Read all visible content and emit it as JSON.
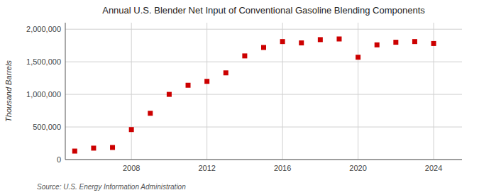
{
  "chart_data": {
    "type": "scatter",
    "title": "Annual U.S. Blender Net Input of Conventional Gasoline Blending Components",
    "y_label": "Thousand Barrels",
    "source": "Source: U.S. Energy Information Administration",
    "x": [
      2005,
      2006,
      2007,
      2008,
      2009,
      2010,
      2011,
      2012,
      2013,
      2014,
      2015,
      2016,
      2017,
      2018,
      2019,
      2020,
      2021,
      2022,
      2023,
      2024
    ],
    "values": [
      130000,
      175000,
      185000,
      460000,
      710000,
      1000000,
      1140000,
      1200000,
      1330000,
      1590000,
      1720000,
      1810000,
      1790000,
      1840000,
      1850000,
      1570000,
      1760000,
      1800000,
      1810000,
      1780000
    ],
    "color": "#cc0000",
    "marker": "square",
    "xlim": [
      2004.5,
      2025.5
    ],
    "xticks": [
      2008,
      2012,
      2016,
      2020,
      2024
    ],
    "ylim": [
      0,
      2100000
    ],
    "yticks": [
      0,
      {
        "value": 500000,
        "label": "500,000"
      },
      {
        "value": 1000000,
        "label": "1,000,000"
      },
      {
        "value": 1500000,
        "label": "1,500,000"
      },
      {
        "value": 2000000,
        "label": "2,000,000"
      }
    ],
    "grid": true
  }
}
